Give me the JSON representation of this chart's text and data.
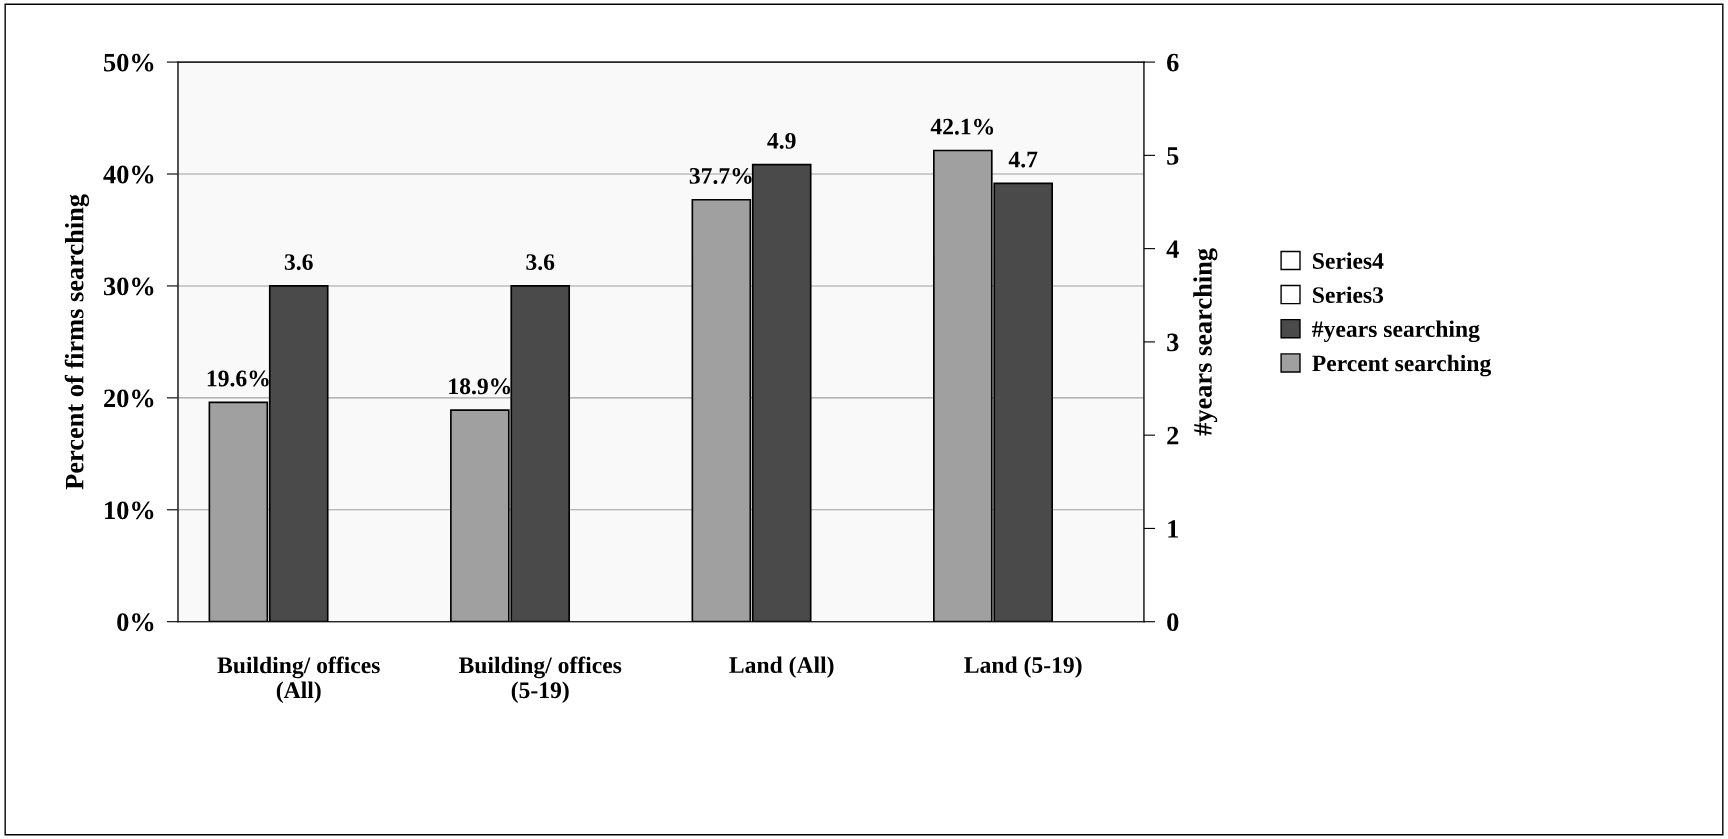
{
  "chart_data": {
    "type": "bar",
    "categories": [
      "Building/ offices\n(All)",
      "Building/ offices\n(5-19)",
      "Land (All)",
      "Land (5-19)"
    ],
    "ylabel": "Percent of firms searching",
    "y2label": "#years searching",
    "ylim": [
      0,
      50
    ],
    "yticks": [
      {
        "value": 0,
        "label": "0%"
      },
      {
        "value": 10,
        "label": "10%"
      },
      {
        "value": 20,
        "label": "20%"
      },
      {
        "value": 30,
        "label": "30%"
      },
      {
        "value": 40,
        "label": "40%"
      },
      {
        "value": 50,
        "label": "50%"
      }
    ],
    "y2lim": [
      0,
      6
    ],
    "y2ticks": [
      0,
      1,
      2,
      3,
      4,
      5,
      6
    ],
    "grid": "y",
    "legend": "right",
    "series": [
      {
        "name": "Percent searching",
        "color": "#a0a0a0",
        "values": [
          19.6,
          18.9,
          37.7,
          42.1
        ],
        "value_labels": [
          "19.6%",
          "18.9%",
          "37.7%",
          "42.1%"
        ]
      },
      {
        "name": "#years searching",
        "color": "#4a4a4a",
        "axis": "y2",
        "values": [
          3.6,
          3.6,
          4.9,
          4.7
        ],
        "value_labels": [
          "3.6",
          "3.6",
          "4.9",
          "4.7"
        ]
      },
      {
        "name": "Series3",
        "color": "#ffffff",
        "values": [
          null,
          null,
          null,
          null
        ]
      },
      {
        "name": "Series4",
        "color": "#ffffff",
        "values": [
          null,
          null,
          null,
          null
        ]
      }
    ]
  }
}
